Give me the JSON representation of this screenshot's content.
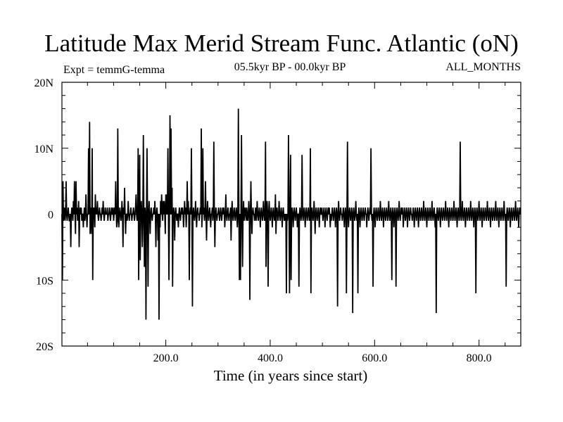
{
  "chart_data": {
    "type": "line",
    "title": "Latitude Max Merid Stream Func. Atlantic (oN)",
    "subtitle_left": "Expt = temmG-temma",
    "subtitle_center": "05.5kyr BP - 00.0kyr BP",
    "subtitle_right": "ALL_MONTHS",
    "xlabel": "Time (in years since start)",
    "ylabel": "",
    "xlim": [
      1,
      880
    ],
    "ylim": [
      -20,
      20
    ],
    "x_ticks": [
      200,
      400,
      600,
      800
    ],
    "x_tick_labels": [
      "200.0",
      "400.0",
      "600.0",
      "800.0"
    ],
    "y_ticks": [
      -20,
      -10,
      0,
      10,
      20
    ],
    "y_tick_labels": [
      "20S",
      "10S",
      "0",
      "10N",
      "20N"
    ],
    "series": [
      {
        "name": "temmG-temma",
        "x_start": 1,
        "x_step": 1,
        "values": [
          0,
          -10,
          5,
          -1,
          0,
          1,
          -1,
          0,
          5,
          0,
          -1,
          0,
          1,
          0,
          -1,
          -1,
          0,
          -5,
          0,
          1,
          0,
          -1,
          2,
          0,
          5,
          0,
          -3,
          5,
          0,
          1,
          -1,
          0,
          2,
          -5,
          0,
          1,
          0,
          1,
          -1,
          0,
          0,
          -2,
          0,
          1,
          -1,
          0,
          3,
          0,
          -2,
          0,
          0,
          10,
          0,
          14,
          -3,
          1,
          0,
          -3,
          10,
          -10,
          0,
          1,
          0,
          -2,
          3,
          0,
          1,
          0,
          2,
          0,
          -1,
          0,
          1,
          0,
          0,
          -1,
          0,
          1,
          0,
          2,
          0,
          -1,
          0,
          1,
          0,
          0,
          0,
          1,
          -1,
          0,
          0,
          1,
          0,
          -1,
          0,
          1,
          0,
          0,
          1,
          -1,
          0,
          1,
          0,
          5,
          0,
          -2,
          -1,
          13,
          0,
          -2,
          0,
          1,
          0,
          -1,
          0,
          2,
          0,
          -5,
          1,
          0,
          4,
          0,
          -3,
          0,
          0,
          -1,
          0,
          2,
          0,
          -1,
          0,
          0,
          1,
          0,
          -1,
          0,
          0,
          1,
          0,
          -1,
          0,
          1,
          3,
          0,
          -1,
          0,
          10,
          -10,
          0,
          9,
          -7,
          0,
          2,
          0,
          -5,
          0,
          12,
          0,
          -8,
          1,
          0,
          -16,
          0,
          10,
          0,
          -11,
          0,
          2,
          0,
          -3,
          0,
          1,
          0,
          -1,
          0,
          0,
          1,
          0,
          2,
          0,
          -5,
          0,
          1,
          0,
          -4,
          0,
          -16,
          0,
          -2,
          2,
          0,
          3,
          0,
          -1,
          2,
          0,
          2,
          0,
          -3,
          3,
          0,
          3,
          0,
          10,
          0,
          -10,
          0,
          15,
          0,
          13,
          0,
          4,
          -11,
          0,
          1,
          0,
          -4,
          0,
          1,
          0,
          -1,
          0,
          0,
          -2,
          0,
          1,
          0,
          -1,
          0,
          1,
          0,
          1,
          0,
          -2,
          0,
          2,
          0,
          1,
          -2,
          0,
          5,
          0,
          2,
          0,
          -10,
          0,
          1,
          0,
          10,
          0,
          -14,
          0,
          1,
          0,
          -1,
          0,
          2,
          0,
          -2,
          0,
          1,
          0,
          0,
          -1,
          0,
          1,
          0,
          13,
          -2,
          0,
          10,
          0,
          1,
          -1,
          0,
          5,
          0,
          -4,
          0,
          2,
          0,
          -1,
          0,
          1,
          0,
          -2,
          0,
          0,
          1,
          -1,
          0,
          11,
          0,
          -5,
          0,
          1,
          0,
          -1,
          0,
          0,
          1,
          0,
          -1,
          0,
          1,
          0,
          -1,
          0,
          1,
          0,
          1,
          0,
          -2,
          0,
          3,
          0,
          -1,
          0,
          1,
          0,
          -1,
          0,
          0,
          1,
          -4,
          0,
          2,
          0,
          -1,
          0,
          1,
          0,
          -1,
          0,
          1,
          0,
          -2,
          0,
          16,
          0,
          -10,
          0,
          -10,
          0,
          12,
          0,
          -8,
          0,
          2,
          -1,
          0,
          1,
          0,
          -1,
          1,
          0,
          -1,
          0,
          2,
          0,
          -13,
          0,
          5,
          0,
          -3,
          0,
          1,
          0,
          0,
          -1,
          0,
          1,
          -1,
          0,
          2,
          0,
          -1,
          0,
          1,
          0,
          -2,
          0,
          1,
          0,
          -1,
          0,
          2,
          0,
          -1,
          0,
          11,
          -8,
          0,
          2,
          0,
          -11,
          0,
          2,
          0,
          -1,
          0,
          1,
          0,
          -2,
          0,
          1,
          0,
          -1,
          0,
          3,
          -3,
          0,
          1,
          0,
          -1,
          0,
          2,
          0,
          -1,
          0,
          1,
          0,
          -2,
          0,
          1,
          0,
          -1,
          0,
          -1,
          0,
          -12,
          0,
          -1,
          0,
          12,
          0,
          -12,
          0,
          9,
          -10,
          0,
          1,
          0,
          -2,
          0,
          1,
          0,
          -1,
          0,
          1,
          0,
          -2,
          0,
          0,
          -11,
          0,
          1,
          0,
          -1,
          0,
          9,
          0,
          -1,
          0,
          1,
          0,
          -2,
          0,
          1,
          0,
          -1,
          0,
          1,
          0,
          -1,
          0,
          10,
          -12,
          0,
          1,
          0,
          -1,
          0,
          2,
          0,
          -3,
          0,
          1,
          0,
          -1,
          0,
          1,
          0,
          -2,
          0,
          1,
          0,
          0,
          1,
          0,
          -1,
          0,
          1,
          0,
          -2,
          0,
          1,
          0,
          -1,
          0,
          1,
          0,
          1,
          0,
          -2,
          0,
          -1,
          0,
          1,
          0,
          -1,
          0,
          1,
          0,
          -2,
          0,
          1,
          0,
          -14,
          0,
          2,
          0,
          -1,
          0,
          1,
          0,
          0,
          -1,
          0,
          1,
          0,
          -2,
          0,
          1,
          0,
          -12,
          0,
          11,
          0,
          -2,
          0,
          1,
          0,
          -1,
          0,
          1,
          0,
          -15,
          0,
          1,
          0,
          -1,
          0,
          2,
          0,
          -1,
          0,
          -12,
          0,
          1,
          0,
          -2,
          0,
          1,
          0,
          -1,
          0,
          1,
          0,
          -1,
          0,
          1,
          0,
          0,
          -2,
          0,
          1,
          0,
          -1,
          0,
          1,
          0,
          10,
          0,
          -1,
          0,
          -11,
          0,
          1,
          0,
          -2,
          0,
          1,
          0,
          -1,
          0,
          1,
          0,
          -1,
          0,
          2,
          0,
          -1,
          0,
          1,
          0,
          -2,
          0,
          1,
          0,
          -1,
          0,
          1,
          0,
          -1,
          0,
          2,
          0,
          -1,
          0,
          1,
          0,
          -10,
          0,
          1,
          0,
          -2,
          0,
          1,
          0,
          -11,
          0,
          1,
          0,
          -1,
          0,
          2,
          0,
          -1,
          0,
          1,
          0,
          1,
          0,
          -2,
          0,
          1,
          0,
          -1,
          0,
          1,
          0,
          -2,
          0,
          1,
          0,
          -1,
          0,
          1,
          0,
          0,
          -1,
          0,
          1,
          0,
          -2,
          0,
          1,
          0,
          -1,
          0,
          1,
          0,
          -2,
          0,
          1,
          0,
          -1,
          0,
          1,
          0,
          -1,
          0,
          2,
          0,
          -1,
          0,
          1,
          0,
          -2,
          0,
          1,
          0,
          -1,
          0,
          1,
          0,
          -1,
          0,
          2,
          0,
          -1,
          0,
          1,
          0,
          -2,
          0,
          -15,
          0,
          1,
          0,
          -1,
          0,
          1,
          0,
          -2,
          0,
          1,
          0,
          -1,
          0,
          1,
          0,
          -1,
          0,
          2,
          0,
          -1,
          0,
          1,
          0,
          -2,
          0,
          1,
          0,
          -1,
          0,
          1,
          0,
          -1,
          0,
          2,
          0,
          -1,
          0,
          1,
          0,
          -2,
          0,
          1,
          0,
          -1,
          0,
          11,
          0,
          -1,
          0,
          2,
          0,
          -1,
          0,
          1,
          0,
          -2,
          0,
          1,
          0,
          -1,
          0,
          1,
          0,
          -1,
          0,
          2,
          0,
          -1,
          0,
          1,
          0,
          -2,
          0,
          1,
          0,
          -12,
          0,
          1,
          0,
          -1,
          0,
          2,
          0,
          -1,
          0,
          1,
          0,
          -2,
          0,
          1,
          0,
          -1,
          0,
          1,
          0,
          -1,
          0,
          2,
          0,
          -1,
          0,
          1,
          0,
          -2,
          0,
          1,
          0,
          -1,
          0,
          1,
          0,
          -1,
          0,
          2,
          0,
          -1,
          0,
          1,
          0,
          -2,
          0,
          1,
          0,
          -1,
          0,
          1,
          0,
          -1,
          0,
          2,
          0,
          -1,
          0,
          -11,
          0,
          1,
          0,
          -1,
          0,
          1,
          0,
          -2,
          0,
          1,
          0,
          -1,
          0,
          1,
          0,
          -1,
          0,
          2,
          0,
          -1,
          0,
          1,
          0,
          -2,
          0,
          1,
          0
        ]
      }
    ]
  }
}
